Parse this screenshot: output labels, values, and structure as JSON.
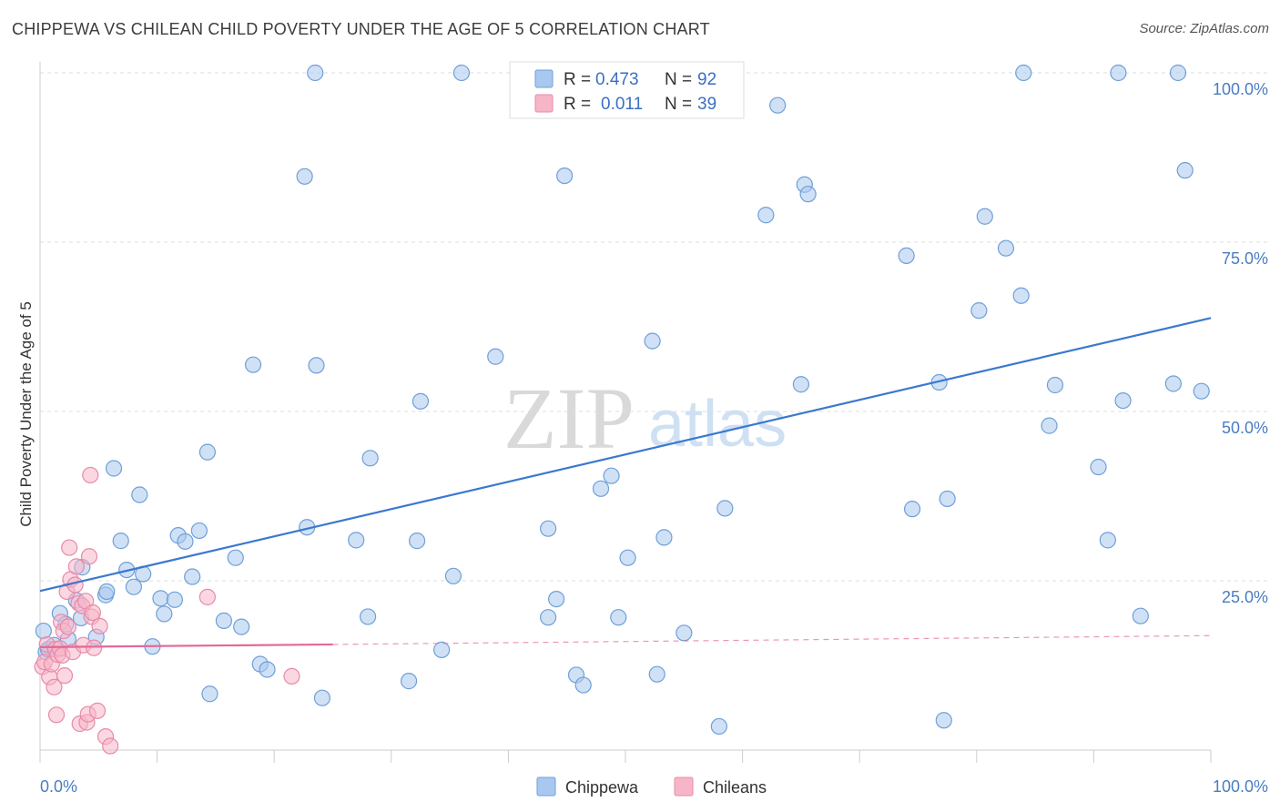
{
  "title": "CHIPPEWA VS CHILEAN CHILD POVERTY UNDER THE AGE OF 5 CORRELATION CHART",
  "source": "Source: ZipAtlas.com",
  "watermark": {
    "zip": "ZIP",
    "atlas": "atlas"
  },
  "colors": {
    "chippewa_fill": "#a9c8ef",
    "chippewa_stroke": "#6f9fd8",
    "chippewa_line": "#3b78cf",
    "chileans_fill": "#f7b6c8",
    "chileans_stroke": "#e88aa8",
    "chileans_line": "#e2699a",
    "tick_text": "#4a7cc4",
    "grid": "#dddddd"
  },
  "legend": {
    "items": [
      {
        "r_label": "R = ",
        "r_value": "0.473",
        "n_label": "N = ",
        "n_value": "92"
      },
      {
        "r_label": "R = ",
        "r_value": "0.011",
        "n_label": "N = ",
        "n_value": "39"
      }
    ]
  },
  "chart_data": {
    "type": "scatter",
    "title": "CHIPPEWA VS CHILEAN CHILD POVERTY UNDER THE AGE OF 5 CORRELATION CHART",
    "xlabel": "",
    "ylabel": "Child Poverty Under the Age of 5",
    "xlim": [
      0,
      100
    ],
    "ylim": [
      0,
      100
    ],
    "x_tick_labels": [
      "0.0%",
      "100.0%"
    ],
    "y_ticks": [
      25,
      50,
      75,
      100
    ],
    "y_tick_labels": [
      "25.0%",
      "50.0%",
      "75.0%",
      "100.0%"
    ],
    "grid": true,
    "legend_position": "top-center",
    "series": [
      {
        "name": "Chippewa",
        "r": 0.473,
        "n": 92,
        "trend": {
          "x": [
            0,
            100
          ],
          "y": [
            23.5,
            63.8
          ],
          "style": "solid"
        },
        "points": [
          [
            0.5,
            14.5
          ],
          [
            0.7,
            14.9
          ],
          [
            1.2,
            15.5
          ],
          [
            1.7,
            20.2
          ],
          [
            2.2,
            18.6
          ],
          [
            2.4,
            16.4
          ],
          [
            3.1,
            22.1
          ],
          [
            3.5,
            19.5
          ],
          [
            3.6,
            27.0
          ],
          [
            4.8,
            16.7
          ],
          [
            5.6,
            22.9
          ],
          [
            5.7,
            23.4
          ],
          [
            6.3,
            41.6
          ],
          [
            6.9,
            30.9
          ],
          [
            7.4,
            26.6
          ],
          [
            8.0,
            24.1
          ],
          [
            8.5,
            37.7
          ],
          [
            8.8,
            26.0
          ],
          [
            9.6,
            15.3
          ],
          [
            10.3,
            22.4
          ],
          [
            10.6,
            20.1
          ],
          [
            11.5,
            22.2
          ],
          [
            11.8,
            31.7
          ],
          [
            12.4,
            30.8
          ],
          [
            13.0,
            25.6
          ],
          [
            13.6,
            32.4
          ],
          [
            14.3,
            44.0
          ],
          [
            14.5,
            8.3
          ],
          [
            15.7,
            19.1
          ],
          [
            16.7,
            28.4
          ],
          [
            17.2,
            18.2
          ],
          [
            18.2,
            56.9
          ],
          [
            18.8,
            12.7
          ],
          [
            19.4,
            11.9
          ],
          [
            22.6,
            84.7
          ],
          [
            22.8,
            32.9
          ],
          [
            23.5,
            100.0
          ],
          [
            23.6,
            56.8
          ],
          [
            24.1,
            7.7
          ],
          [
            27.0,
            31.0
          ],
          [
            28.0,
            19.7
          ],
          [
            28.2,
            43.1
          ],
          [
            31.5,
            10.2
          ],
          [
            32.2,
            30.9
          ],
          [
            32.5,
            51.5
          ],
          [
            34.3,
            14.8
          ],
          [
            35.3,
            25.7
          ],
          [
            36.0,
            100.0
          ],
          [
            38.9,
            58.1
          ],
          [
            43.4,
            19.6
          ],
          [
            43.4,
            32.7
          ],
          [
            44.1,
            22.3
          ],
          [
            44.8,
            84.8
          ],
          [
            45.8,
            11.1
          ],
          [
            46.4,
            9.6
          ],
          [
            47.9,
            38.6
          ],
          [
            48.8,
            40.5
          ],
          [
            49.4,
            19.6
          ],
          [
            50.2,
            28.4
          ],
          [
            52.3,
            60.4
          ],
          [
            52.7,
            11.2
          ],
          [
            53.3,
            31.4
          ],
          [
            55.0,
            17.3
          ],
          [
            58.0,
            3.5
          ],
          [
            58.5,
            35.7
          ],
          [
            62.0,
            79.0
          ],
          [
            63.0,
            95.2
          ],
          [
            65.0,
            54.0
          ],
          [
            65.3,
            83.5
          ],
          [
            65.6,
            82.1
          ],
          [
            74.0,
            73.0
          ],
          [
            74.5,
            35.6
          ],
          [
            76.8,
            54.3
          ],
          [
            77.2,
            4.4
          ],
          [
            77.5,
            37.1
          ],
          [
            80.2,
            64.9
          ],
          [
            80.7,
            78.8
          ],
          [
            82.5,
            74.1
          ],
          [
            83.8,
            67.1
          ],
          [
            84.0,
            100.0
          ],
          [
            86.2,
            47.9
          ],
          [
            86.7,
            53.9
          ],
          [
            90.4,
            41.8
          ],
          [
            91.2,
            31.0
          ],
          [
            92.1,
            100.0
          ],
          [
            92.5,
            51.6
          ],
          [
            94.0,
            19.8
          ],
          [
            96.8,
            54.1
          ],
          [
            97.2,
            100.0
          ],
          [
            97.8,
            85.6
          ],
          [
            99.2,
            53.0
          ],
          [
            0.3,
            17.6
          ]
        ]
      },
      {
        "name": "Chileans",
        "r": 0.011,
        "n": 39,
        "trend": {
          "x": [
            0,
            25,
            100
          ],
          "y": [
            15.2,
            15.6,
            16.9
          ],
          "style": "solid-then-dashed"
        },
        "points": [
          [
            0.2,
            12.3
          ],
          [
            0.4,
            13.0
          ],
          [
            0.6,
            15.6
          ],
          [
            0.8,
            10.8
          ],
          [
            1.0,
            12.7
          ],
          [
            1.2,
            9.3
          ],
          [
            1.3,
            14.9
          ],
          [
            1.4,
            5.2
          ],
          [
            1.5,
            14.1
          ],
          [
            1.7,
            15.0
          ],
          [
            1.8,
            18.9
          ],
          [
            1.9,
            14.0
          ],
          [
            2.0,
            17.6
          ],
          [
            2.1,
            11.0
          ],
          [
            2.3,
            23.4
          ],
          [
            2.4,
            18.2
          ],
          [
            2.5,
            29.9
          ],
          [
            2.6,
            25.2
          ],
          [
            2.8,
            14.5
          ],
          [
            3.0,
            24.4
          ],
          [
            3.1,
            27.1
          ],
          [
            3.3,
            21.7
          ],
          [
            3.4,
            3.9
          ],
          [
            3.6,
            21.3
          ],
          [
            3.7,
            15.5
          ],
          [
            3.9,
            22.0
          ],
          [
            4.0,
            4.1
          ],
          [
            4.1,
            5.3
          ],
          [
            4.2,
            28.6
          ],
          [
            4.3,
            40.6
          ],
          [
            4.4,
            19.7
          ],
          [
            4.5,
            20.3
          ],
          [
            4.6,
            15.1
          ],
          [
            4.9,
            5.8
          ],
          [
            5.1,
            18.3
          ],
          [
            5.6,
            2.0
          ],
          [
            6.0,
            0.6
          ],
          [
            14.3,
            22.6
          ],
          [
            21.5,
            10.9
          ]
        ]
      }
    ]
  }
}
